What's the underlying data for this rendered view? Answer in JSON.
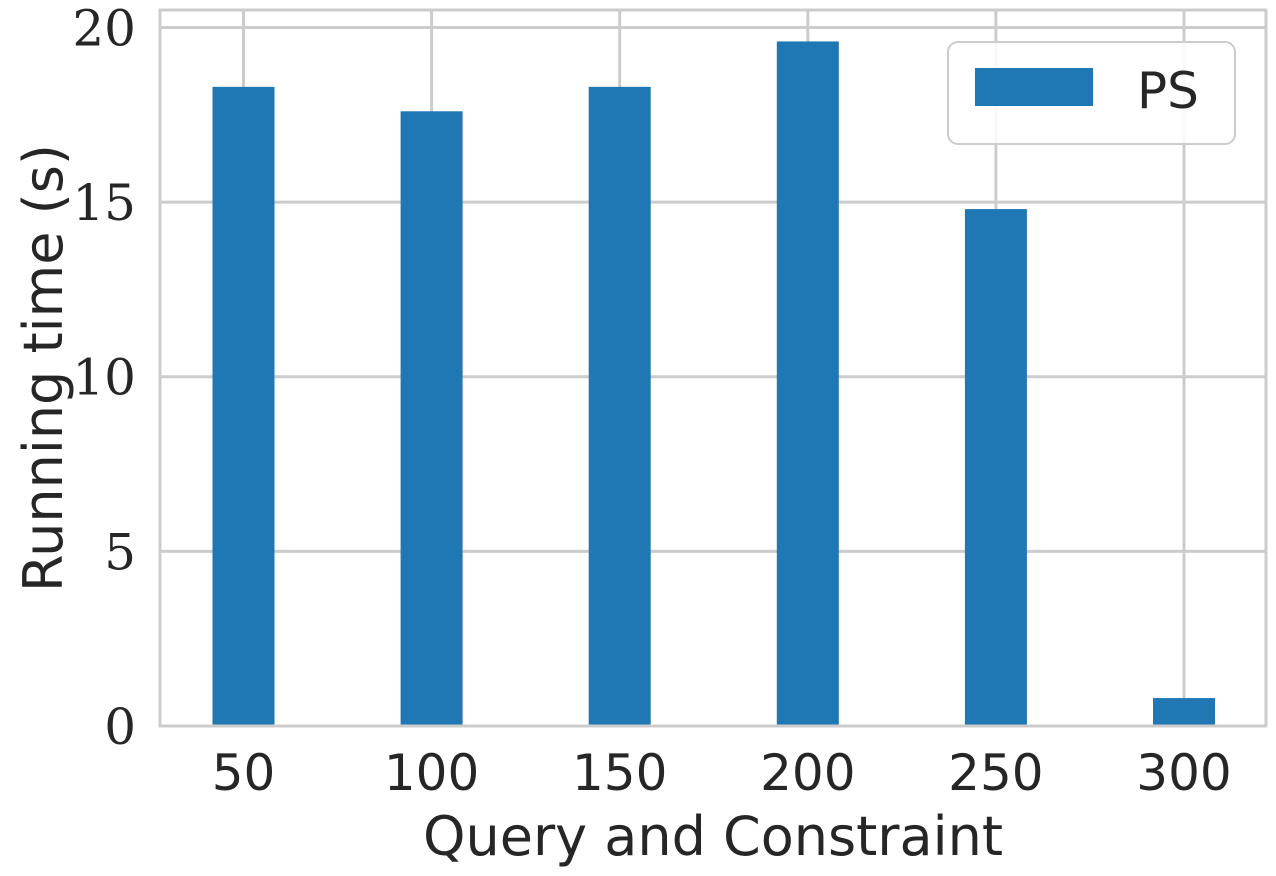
{
  "chart_data": {
    "type": "bar",
    "categories": [
      "50",
      "100",
      "150",
      "200",
      "250",
      "300"
    ],
    "series": [
      {
        "name": "PS",
        "values": [
          18.3,
          17.6,
          18.3,
          19.6,
          14.8,
          0.8
        ]
      }
    ],
    "xlabel": "Query and Constraint",
    "ylabel": "Running time (s)",
    "ylim": [
      0,
      20.5
    ],
    "yticks": [
      0,
      5,
      10,
      15,
      20
    ],
    "yticklabels": [
      "0",
      "5",
      "10",
      "15",
      "20"
    ],
    "grid": true,
    "legend": {
      "position": "top-right",
      "entries": [
        "PS"
      ]
    },
    "colors": {
      "bar": "#1f77b4",
      "grid": "#cccccc",
      "text": "#262626"
    }
  }
}
